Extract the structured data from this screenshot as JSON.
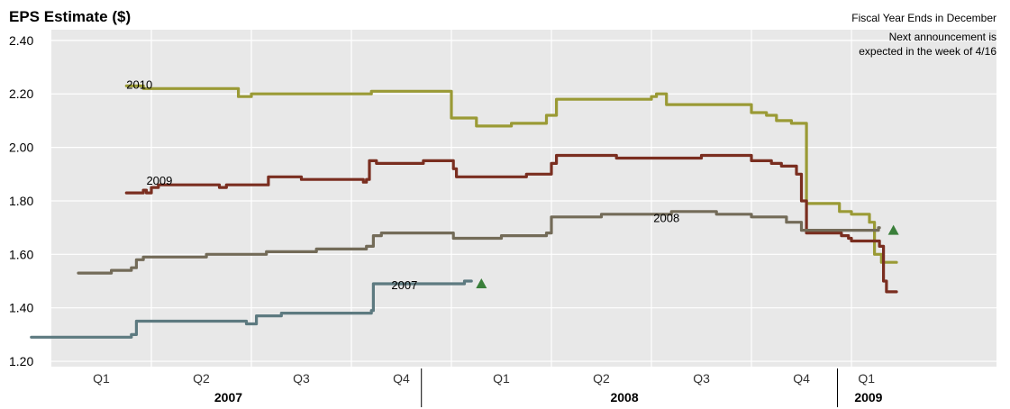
{
  "chart_data": {
    "type": "line",
    "title": "EPS Estimate ($)",
    "notes": [
      "Fiscal Year Ends in December",
      "Next announcement is",
      "expected in the week of 4/16"
    ],
    "ylim": [
      1.18,
      2.44
    ],
    "yticks": [
      "1.20",
      "1.40",
      "1.60",
      "1.80",
      "2.00",
      "2.20",
      "2.40"
    ],
    "xlim": [
      0,
      9.45
    ],
    "quarter_ticks": [
      {
        "label": "Q1",
        "x": 0.5
      },
      {
        "label": "Q2",
        "x": 1.5
      },
      {
        "label": "Q3",
        "x": 2.5
      },
      {
        "label": "Q4",
        "x": 3.5
      },
      {
        "label": "Q1",
        "x": 4.5
      },
      {
        "label": "Q2",
        "x": 5.5
      },
      {
        "label": "Q3",
        "x": 6.5
      },
      {
        "label": "Q4",
        "x": 7.5
      },
      {
        "label": "Q1",
        "x": 8.15
      }
    ],
    "year_ticks": [
      {
        "label": "2007",
        "x": 1.77
      },
      {
        "label": "2008",
        "x": 5.73
      },
      {
        "label": "2009",
        "x": 8.17
      }
    ],
    "year_dividers": [
      3.7,
      7.86
    ],
    "grid": true,
    "series": [
      {
        "name": "2010",
        "color": "#9a9a35",
        "label_pos": [
          0.75,
          2.22
        ],
        "points": [
          [
            0.75,
            2.23
          ],
          [
            0.92,
            2.23
          ],
          [
            0.92,
            2.22
          ],
          [
            1.87,
            2.22
          ],
          [
            1.87,
            2.19
          ],
          [
            2.0,
            2.19
          ],
          [
            2.0,
            2.2
          ],
          [
            3.2,
            2.2
          ],
          [
            3.2,
            2.21
          ],
          [
            4.0,
            2.21
          ],
          [
            4.0,
            2.11
          ],
          [
            4.25,
            2.11
          ],
          [
            4.25,
            2.08
          ],
          [
            4.6,
            2.08
          ],
          [
            4.6,
            2.09
          ],
          [
            4.95,
            2.09
          ],
          [
            4.95,
            2.12
          ],
          [
            5.05,
            2.12
          ],
          [
            5.05,
            2.18
          ],
          [
            6.0,
            2.18
          ],
          [
            6.0,
            2.19
          ],
          [
            6.05,
            2.19
          ],
          [
            6.05,
            2.2
          ],
          [
            6.15,
            2.2
          ],
          [
            6.15,
            2.16
          ],
          [
            7.0,
            2.16
          ],
          [
            7.0,
            2.13
          ],
          [
            7.15,
            2.13
          ],
          [
            7.15,
            2.12
          ],
          [
            7.25,
            2.12
          ],
          [
            7.25,
            2.1
          ],
          [
            7.4,
            2.1
          ],
          [
            7.4,
            2.09
          ],
          [
            7.55,
            2.09
          ],
          [
            7.55,
            1.79
          ],
          [
            7.88,
            1.79
          ],
          [
            7.88,
            1.76
          ],
          [
            8.0,
            1.76
          ],
          [
            8.0,
            1.75
          ],
          [
            8.18,
            1.75
          ],
          [
            8.18,
            1.72
          ],
          [
            8.23,
            1.72
          ],
          [
            8.23,
            1.6
          ],
          [
            8.3,
            1.6
          ],
          [
            8.3,
            1.57
          ],
          [
            8.45,
            1.57
          ]
        ]
      },
      {
        "name": "2009",
        "color": "#7a2e20",
        "label_pos": [
          0.95,
          1.86
        ],
        "points": [
          [
            0.75,
            1.83
          ],
          [
            0.92,
            1.83
          ],
          [
            0.92,
            1.84
          ],
          [
            0.95,
            1.84
          ],
          [
            0.95,
            1.83
          ],
          [
            1.0,
            1.83
          ],
          [
            1.0,
            1.85
          ],
          [
            1.07,
            1.85
          ],
          [
            1.07,
            1.86
          ],
          [
            1.68,
            1.86
          ],
          [
            1.68,
            1.85
          ],
          [
            1.75,
            1.85
          ],
          [
            1.75,
            1.86
          ],
          [
            2.17,
            1.86
          ],
          [
            2.17,
            1.89
          ],
          [
            2.5,
            1.89
          ],
          [
            2.5,
            1.88
          ],
          [
            3.12,
            1.88
          ],
          [
            3.12,
            1.87
          ],
          [
            3.15,
            1.87
          ],
          [
            3.15,
            1.88
          ],
          [
            3.18,
            1.88
          ],
          [
            3.18,
            1.95
          ],
          [
            3.25,
            1.95
          ],
          [
            3.25,
            1.94
          ],
          [
            3.72,
            1.94
          ],
          [
            3.72,
            1.95
          ],
          [
            4.02,
            1.95
          ],
          [
            4.02,
            1.92
          ],
          [
            4.05,
            1.92
          ],
          [
            4.05,
            1.89
          ],
          [
            4.75,
            1.89
          ],
          [
            4.75,
            1.9
          ],
          [
            5.0,
            1.9
          ],
          [
            5.0,
            1.94
          ],
          [
            5.05,
            1.94
          ],
          [
            5.05,
            1.97
          ],
          [
            5.65,
            1.97
          ],
          [
            5.65,
            1.96
          ],
          [
            6.5,
            1.96
          ],
          [
            6.5,
            1.97
          ],
          [
            7.0,
            1.97
          ],
          [
            7.0,
            1.95
          ],
          [
            7.2,
            1.95
          ],
          [
            7.2,
            1.94
          ],
          [
            7.3,
            1.94
          ],
          [
            7.3,
            1.93
          ],
          [
            7.45,
            1.93
          ],
          [
            7.45,
            1.9
          ],
          [
            7.5,
            1.9
          ],
          [
            7.5,
            1.8
          ],
          [
            7.55,
            1.8
          ],
          [
            7.55,
            1.68
          ],
          [
            7.9,
            1.68
          ],
          [
            7.9,
            1.67
          ],
          [
            7.97,
            1.67
          ],
          [
            7.97,
            1.66
          ],
          [
            8.0,
            1.66
          ],
          [
            8.0,
            1.65
          ],
          [
            8.28,
            1.65
          ],
          [
            8.28,
            1.63
          ],
          [
            8.32,
            1.63
          ],
          [
            8.32,
            1.5
          ],
          [
            8.35,
            1.5
          ],
          [
            8.35,
            1.46
          ],
          [
            8.45,
            1.46
          ]
        ]
      },
      {
        "name": "2008",
        "color": "#736b58",
        "label_pos": [
          6.02,
          1.72
        ],
        "points": [
          [
            0.27,
            1.53
          ],
          [
            0.6,
            1.53
          ],
          [
            0.6,
            1.54
          ],
          [
            0.8,
            1.54
          ],
          [
            0.8,
            1.55
          ],
          [
            0.85,
            1.55
          ],
          [
            0.85,
            1.58
          ],
          [
            0.92,
            1.58
          ],
          [
            0.92,
            1.59
          ],
          [
            1.55,
            1.59
          ],
          [
            1.55,
            1.6
          ],
          [
            2.15,
            1.6
          ],
          [
            2.15,
            1.61
          ],
          [
            2.65,
            1.61
          ],
          [
            2.65,
            1.62
          ],
          [
            3.15,
            1.62
          ],
          [
            3.15,
            1.63
          ],
          [
            3.22,
            1.63
          ],
          [
            3.22,
            1.67
          ],
          [
            3.3,
            1.67
          ],
          [
            3.3,
            1.68
          ],
          [
            4.02,
            1.68
          ],
          [
            4.02,
            1.66
          ],
          [
            4.5,
            1.66
          ],
          [
            4.5,
            1.67
          ],
          [
            4.95,
            1.67
          ],
          [
            4.95,
            1.68
          ],
          [
            5.0,
            1.68
          ],
          [
            5.0,
            1.74
          ],
          [
            5.5,
            1.74
          ],
          [
            5.5,
            1.75
          ],
          [
            6.2,
            1.75
          ],
          [
            6.2,
            1.76
          ],
          [
            6.65,
            1.76
          ],
          [
            6.65,
            1.75
          ],
          [
            7.0,
            1.75
          ],
          [
            7.0,
            1.74
          ],
          [
            7.35,
            1.74
          ],
          [
            7.35,
            1.72
          ],
          [
            7.5,
            1.72
          ],
          [
            7.5,
            1.69
          ],
          [
            8.27,
            1.69
          ],
          [
            8.27,
            1.7
          ],
          [
            8.28,
            1.7
          ]
        ]
      },
      {
        "name": "2007",
        "color": "#5d7a80",
        "label_pos": [
          3.4,
          1.47
        ],
        "points": [
          [
            -0.2,
            1.29
          ],
          [
            0.8,
            1.29
          ],
          [
            0.8,
            1.3
          ],
          [
            0.85,
            1.3
          ],
          [
            0.85,
            1.35
          ],
          [
            1.95,
            1.35
          ],
          [
            1.95,
            1.34
          ],
          [
            2.05,
            1.34
          ],
          [
            2.05,
            1.37
          ],
          [
            2.3,
            1.37
          ],
          [
            2.3,
            1.38
          ],
          [
            3.2,
            1.38
          ],
          [
            3.2,
            1.39
          ],
          [
            3.22,
            1.39
          ],
          [
            3.22,
            1.49
          ],
          [
            4.13,
            1.49
          ],
          [
            4.13,
            1.5
          ],
          [
            4.2,
            1.5
          ]
        ]
      }
    ],
    "markers": [
      {
        "x": 4.3,
        "y": 1.49,
        "color": "#3a7f3a"
      },
      {
        "x": 8.42,
        "y": 1.69,
        "color": "#3a7f3a"
      }
    ]
  }
}
